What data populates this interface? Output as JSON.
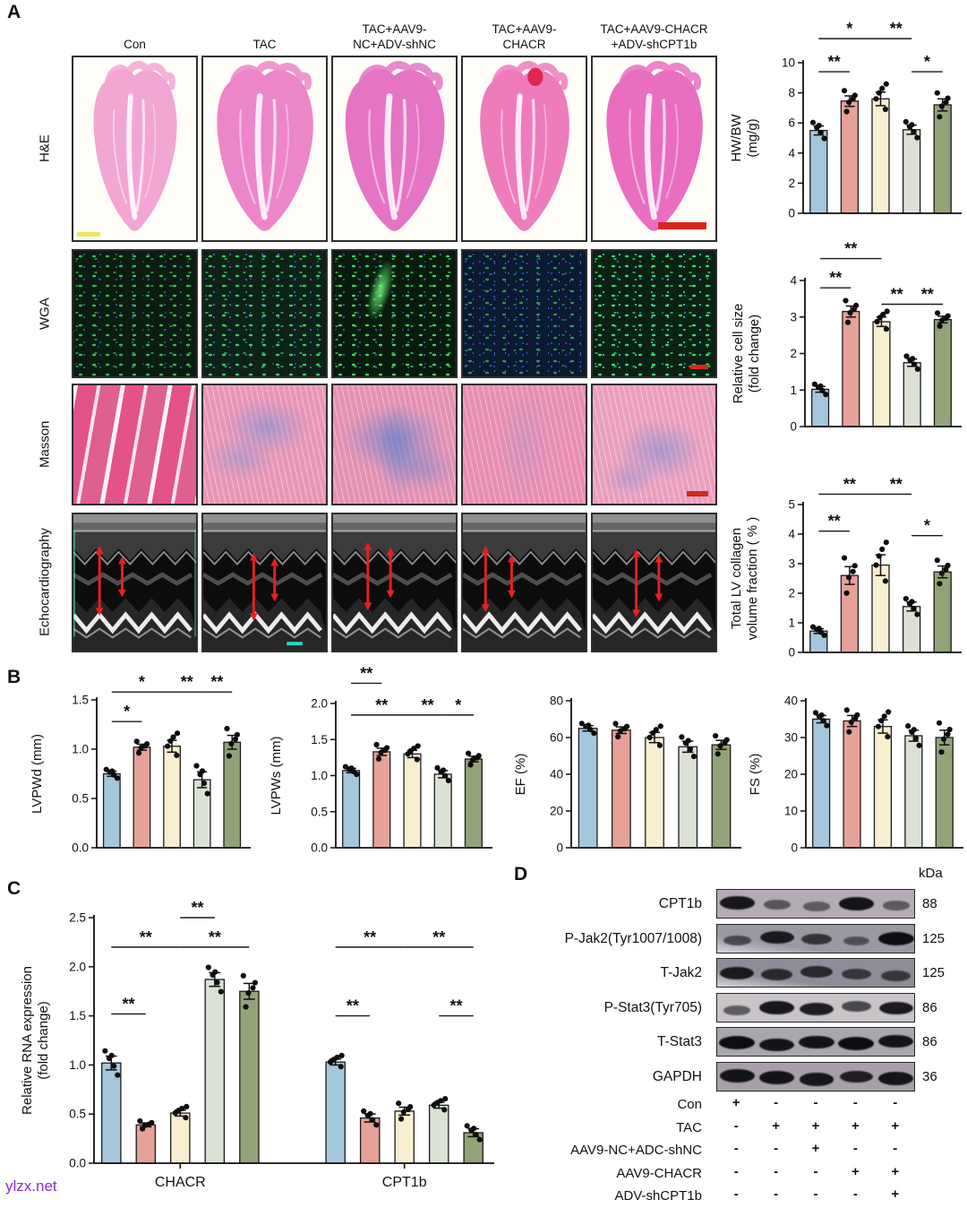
{
  "panels": {
    "a": "A",
    "b": "B",
    "c": "C",
    "d": "D"
  },
  "watermark": "ylzx.net",
  "palette": {
    "bar_fills": [
      "#a5c7dd",
      "#e6a198",
      "#f8eed0",
      "#dbe2d5",
      "#93a377"
    ],
    "bar_edge": "#1b1b1b",
    "sig_color": "#1a1a1a",
    "watermark_color": "#8a2be2",
    "scalebar_red": "#d5281c",
    "he_tints": [
      "#f2a6d4",
      "#ec86c8",
      "#e574c4",
      "#ee7cba",
      "#e96ec0"
    ],
    "echo_arrow_red": "#e81f1f"
  },
  "treatment_groups": [
    "Con",
    "TAC",
    "TAC+AAV9-NC+ADV-shNC",
    "TAC+AAV9-CHACR",
    "TAC+AAV9-CHACR+ADV-shCPT1b"
  ],
  "panelA": {
    "columns": [
      {
        "key": "con",
        "header": [
          "Con"
        ]
      },
      {
        "key": "tac",
        "header": [
          "TAC"
        ]
      },
      {
        "key": "tac-aav9-nc-adv-shnc",
        "header": [
          "TAC+AAV9-",
          "NC+ADV-shNC"
        ]
      },
      {
        "key": "tac-aav9-chacr",
        "header": [
          "TAC+AAV9-",
          "CHACR"
        ]
      },
      {
        "key": "tac-aav9-chacr-adv-shcpt1b",
        "header": [
          "TAC+AAV9-CHACR",
          "+ADV-shCPT1b"
        ]
      }
    ],
    "rows": [
      {
        "key": "he",
        "label": "H&E"
      },
      {
        "key": "wga",
        "label": "WGA"
      },
      {
        "key": "masson",
        "label": "Masson"
      },
      {
        "key": "echo",
        "label": "Echocardiography"
      }
    ]
  },
  "chart_data": [
    {
      "id": "hwbw",
      "type": "bar",
      "title": "",
      "xlabel": "",
      "ylabel": "HW/BW (mg/g)",
      "ylabel_lines": [
        "HW/BW",
        "(mg/g)"
      ],
      "ylim": [
        0,
        10
      ],
      "yticks": [
        "0",
        "2",
        "4",
        "6",
        "8",
        "10"
      ],
      "categories": [
        "Con",
        "TAC",
        "TAC+AAV9-NC+ADV-shNC",
        "TAC+AAV9-CHACR",
        "TAC+AAV9-CHACR+ADV-shCPT1b"
      ],
      "values": [
        5.5,
        7.45,
        7.6,
        5.55,
        7.2
      ],
      "errors": [
        0.3,
        0.35,
        0.45,
        0.3,
        0.4
      ],
      "sig": [
        {
          "bars": [
            0,
            1
          ],
          "label": "**",
          "y": 9.4
        },
        {
          "bars": [
            0,
            2
          ],
          "label": "*",
          "y": 11.6
        },
        {
          "bars": [
            2,
            3
          ],
          "label": "**",
          "y": 11.6
        },
        {
          "bars": [
            3,
            4
          ],
          "label": "*",
          "y": 9.4
        }
      ]
    },
    {
      "id": "cellsize",
      "type": "bar",
      "title": "",
      "xlabel": "",
      "ylabel": "Relative cell size (fold change)",
      "ylabel_lines": [
        "Relative cell size",
        "(fold change)"
      ],
      "ylim": [
        0,
        4
      ],
      "yticks": [
        "0",
        "1",
        "2",
        "3",
        "4"
      ],
      "categories": [
        "Con",
        "TAC",
        "TAC+AAV9-NC+ADV-shNC",
        "TAC+AAV9-CHACR",
        "TAC+AAV9-CHACR+ADV-shCPT1b"
      ],
      "values": [
        1.02,
        3.15,
        2.87,
        1.75,
        2.93
      ],
      "errors": [
        0.08,
        0.15,
        0.13,
        0.1,
        0.09
      ],
      "sig": [
        {
          "bars": [
            0,
            1
          ],
          "label": "**",
          "y": 3.8
        },
        {
          "bars": [
            0,
            2
          ],
          "label": "**",
          "y": 4.6
        },
        {
          "bars": [
            2,
            3
          ],
          "label": "**",
          "y": 3.35
        },
        {
          "bars": [
            3,
            4
          ],
          "label": "**",
          "y": 3.35
        }
      ]
    },
    {
      "id": "collagen",
      "type": "bar",
      "title": "",
      "xlabel": "",
      "ylabel": "Total LV collagen volume fraction ( % )",
      "ylabel_lines": [
        "Total LV collagen",
        "volume fraction ( % )"
      ],
      "ylim": [
        0,
        5
      ],
      "yticks": [
        "0",
        "1",
        "2",
        "3",
        "4",
        "5"
      ],
      "categories": [
        "Con",
        "TAC",
        "TAC+AAV9-NC+ADV-shNC",
        "TAC+AAV9-CHACR",
        "TAC+AAV9-CHACR+ADV-shCPT1b"
      ],
      "values": [
        0.72,
        2.6,
        2.95,
        1.55,
        2.72
      ],
      "errors": [
        0.08,
        0.3,
        0.35,
        0.15,
        0.2
      ],
      "sig": [
        {
          "bars": [
            0,
            1
          ],
          "label": "**",
          "y": 4.1
        },
        {
          "bars": [
            0,
            2
          ],
          "label": "**",
          "y": 5.35
        },
        {
          "bars": [
            2,
            3
          ],
          "label": "**",
          "y": 5.35
        },
        {
          "bars": [
            3,
            4
          ],
          "label": "*",
          "y": 3.95
        }
      ]
    },
    {
      "id": "lvpwd",
      "type": "bar",
      "title": "",
      "xlabel": "",
      "ylabel": "LVPWd (mm)",
      "ylabel_lines": [
        "LVPWd (mm)"
      ],
      "ylim": [
        0,
        1.5
      ],
      "yticks": [
        "0.0",
        "0.5",
        "1.0",
        "1.5"
      ],
      "categories": [
        "Con",
        "TAC",
        "TAC+AAV9-NC+ADV-shNC",
        "TAC+AAV9-CHACR",
        "TAC+AAV9-CHACR+ADV-shCPT1b"
      ],
      "values": [
        0.75,
        1.02,
        1.03,
        0.69,
        1.07
      ],
      "errors": [
        0.025,
        0.03,
        0.06,
        0.08,
        0.07
      ],
      "sig": [
        {
          "bars": [
            0,
            1
          ],
          "label": "*",
          "y": 1.28
        },
        {
          "bars": [
            0,
            2
          ],
          "label": "*",
          "y": 1.58
        },
        {
          "bars": [
            2,
            3
          ],
          "label": "**",
          "y": 1.58
        },
        {
          "bars": [
            3,
            4
          ],
          "label": "**",
          "y": 1.58
        }
      ]
    },
    {
      "id": "lvpws",
      "type": "bar",
      "title": "",
      "xlabel": "",
      "ylabel": "LVPWs (mm)",
      "ylabel_lines": [
        "LVPWs (mm)"
      ],
      "ylim": [
        0,
        2.0
      ],
      "yticks": [
        "0.0",
        "0.5",
        "1.0",
        "1.5",
        "2.0"
      ],
      "categories": [
        "Con",
        "TAC",
        "TAC+AAV9-NC+ADV-shNC",
        "TAC+AAV9-CHACR",
        "TAC+AAV9-CHACR+ADV-shCPT1b"
      ],
      "values": [
        1.07,
        1.33,
        1.3,
        1.02,
        1.23
      ],
      "errors": [
        0.03,
        0.05,
        0.05,
        0.05,
        0.04
      ],
      "sig": [
        {
          "bars": [
            0,
            1
          ],
          "label": "**",
          "y": 2.28
        },
        {
          "bars": [
            0,
            2
          ],
          "label": "**",
          "y": 1.84
        },
        {
          "bars": [
            2,
            3
          ],
          "label": "**",
          "y": 1.84
        },
        {
          "bars": [
            3,
            4
          ],
          "label": "*",
          "y": 1.84
        }
      ]
    },
    {
      "id": "ef",
      "type": "bar",
      "title": "",
      "xlabel": "",
      "ylabel": "EF (%)",
      "ylabel_lines": [
        "EF (%)"
      ],
      "ylim": [
        0,
        80
      ],
      "yticks": [
        "0",
        "20",
        "40",
        "60",
        "80"
      ],
      "categories": [
        "Con",
        "TAC",
        "TAC+AAV9-NC+ADV-shNC",
        "TAC+AAV9-CHACR",
        "TAC+AAV9-CHACR+ADV-shCPT1b"
      ],
      "values": [
        65,
        64,
        60,
        55,
        56
      ],
      "errors": [
        1.5,
        1.8,
        2.8,
        3,
        2.5
      ],
      "sig": []
    },
    {
      "id": "fs",
      "type": "bar",
      "title": "",
      "xlabel": "",
      "ylabel": "FS (%)",
      "ylabel_lines": [
        "FS (%)"
      ],
      "ylim": [
        0,
        40
      ],
      "yticks": [
        "0",
        "10",
        "20",
        "30",
        "40"
      ],
      "categories": [
        "Con",
        "TAC",
        "TAC+AAV9-NC+ADV-shNC",
        "TAC+AAV9-CHACR",
        "TAC+AAV9-CHACR+ADV-shCPT1b"
      ],
      "values": [
        35,
        34.5,
        33,
        30.5,
        30
      ],
      "errors": [
        1,
        1.5,
        1.8,
        1.5,
        2
      ],
      "sig": []
    },
    {
      "id": "rna",
      "type": "bar",
      "title": "",
      "xlabel": "",
      "ylabel": "Relative RNA expression (fold change)",
      "ylabel_lines": [
        "Relative RNA expression",
        "(fold change)"
      ],
      "ylim": [
        0,
        2.5
      ],
      "yticks": [
        "0.0",
        "0.5",
        "1.0",
        "1.5",
        "2.0",
        "2.5"
      ],
      "categories": [
        "Con",
        "TAC",
        "TAC+AAV9-NC+ADV-shNC",
        "TAC+AAV9-CHACR",
        "TAC+AAV9-CHACR+ADV-shCPT1b"
      ],
      "groups": [
        {
          "label": "CHACR",
          "values": [
            1.02,
            0.39,
            0.51,
            1.87,
            1.75
          ],
          "errors": [
            0.07,
            0.02,
            0.03,
            0.07,
            0.08
          ]
        },
        {
          "label": "CPT1b",
          "values": [
            1.03,
            0.46,
            0.53,
            0.59,
            0.31
          ],
          "errors": [
            0.03,
            0.04,
            0.04,
            0.03,
            0.04
          ]
        }
      ],
      "sig": [
        {
          "bars": [
            0,
            1
          ],
          "label": "**",
          "y": 1.52
        },
        {
          "bars": [
            0,
            2
          ],
          "label": "**",
          "y": 2.2
        },
        {
          "bars": [
            2,
            3
          ],
          "label": "**",
          "y": 2.5
        },
        {
          "bars": [
            2,
            4
          ],
          "label": "**",
          "y": 2.2
        },
        {
          "bars": [
            5,
            6
          ],
          "label": "**",
          "y": 1.5
        },
        {
          "bars": [
            5,
            7
          ],
          "label": "**",
          "y": 2.2
        },
        {
          "bars": [
            7,
            9
          ],
          "label": "**",
          "y": 2.2
        },
        {
          "bars": [
            8,
            9
          ],
          "label": "**",
          "y": 1.5
        }
      ]
    }
  ],
  "panelD": {
    "label": "D",
    "kda_header": "kDa",
    "rows": [
      {
        "label": "CPT1b",
        "kda": "88",
        "bg": "#b4acb4",
        "bands": [
          0.92,
          0.38,
          0.32,
          0.95,
          0.34
        ]
      },
      {
        "label": "P-Jak2(Tyr1007/1008)",
        "kda": "125",
        "bg": "#9c98a2",
        "bands": [
          0.45,
          0.88,
          0.62,
          0.33,
          1.0
        ]
      },
      {
        "label": "T-Jak2",
        "kda": "125",
        "bg": "#8e8c96",
        "bands": [
          0.88,
          0.7,
          0.72,
          0.55,
          0.55
        ]
      },
      {
        "label": "P-Stat3(Tyr705)",
        "kda": "86",
        "bg": "#c8c4c8",
        "bands": [
          0.4,
          0.92,
          0.88,
          0.55,
          0.9
        ]
      },
      {
        "label": "T-Stat3",
        "kda": "86",
        "bg": "#aaa6ae",
        "bands": [
          1,
          0.95,
          0.95,
          1,
          0.95
        ]
      },
      {
        "label": "GAPDH",
        "kda": "36",
        "bg": "#a8a0a8",
        "bands": [
          0.95,
          0.95,
          0.92,
          0.85,
          0.95
        ]
      }
    ],
    "conditions": [
      {
        "label": "Con",
        "marks": [
          "+",
          "-",
          "-",
          "-",
          "-"
        ]
      },
      {
        "label": "TAC",
        "marks": [
          "-",
          "+",
          "+",
          "+",
          "+"
        ]
      },
      {
        "label": "AAV9-NC+ADC-shNC",
        "marks": [
          "-",
          "-",
          "+",
          "-",
          "-"
        ]
      },
      {
        "label": "AAV9-CHACR",
        "marks": [
          "-",
          "-",
          "-",
          "+",
          "+"
        ]
      },
      {
        "label": "ADV-shCPT1b",
        "marks": [
          "-",
          "-",
          "-",
          "-",
          "+"
        ]
      }
    ]
  }
}
